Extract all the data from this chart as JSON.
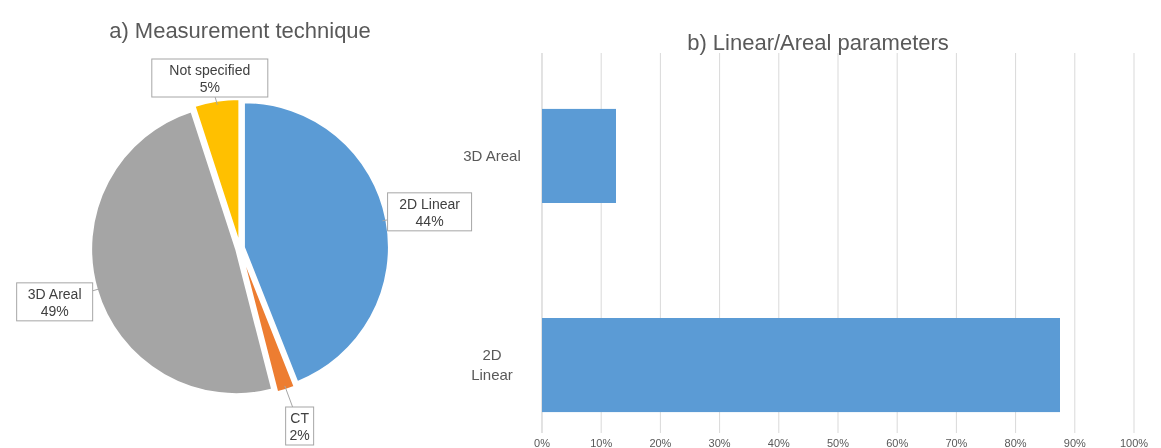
{
  "chart_data": [
    {
      "type": "pie",
      "title": "a) Measurement technique",
      "categories": [
        "2D Linear",
        "CT",
        "3D Areal",
        "Not specified"
      ],
      "values": [
        44,
        2,
        49,
        5
      ],
      "value_labels": [
        "44%",
        "2%",
        "49%",
        "5%"
      ],
      "colors": [
        "#5b9bd5",
        "#ed7d31",
        "#a5a5a5",
        "#ffc000"
      ]
    },
    {
      "type": "bar",
      "title": "b) Linear/Areal parameters",
      "orientation": "horizontal",
      "categories": [
        "3D Areal",
        "2D Linear"
      ],
      "values": [
        12.5,
        87.5
      ],
      "color": "#5b9bd5",
      "xlim": [
        0,
        100
      ],
      "xticks": [
        {
          "value": 0,
          "label": "0%"
        },
        {
          "value": 10,
          "label": "10%"
        },
        {
          "value": 20,
          "label": "20%"
        },
        {
          "value": 30,
          "label": "30%"
        },
        {
          "value": 40,
          "label": "40%"
        },
        {
          "value": 50,
          "label": "50%"
        },
        {
          "value": 60,
          "label": "60%"
        },
        {
          "value": 70,
          "label": "70%"
        },
        {
          "value": 80,
          "label": "80%"
        },
        {
          "value": 90,
          "label": "90%"
        },
        {
          "value": 100,
          "label": "100%"
        }
      ],
      "grid": "x"
    }
  ]
}
